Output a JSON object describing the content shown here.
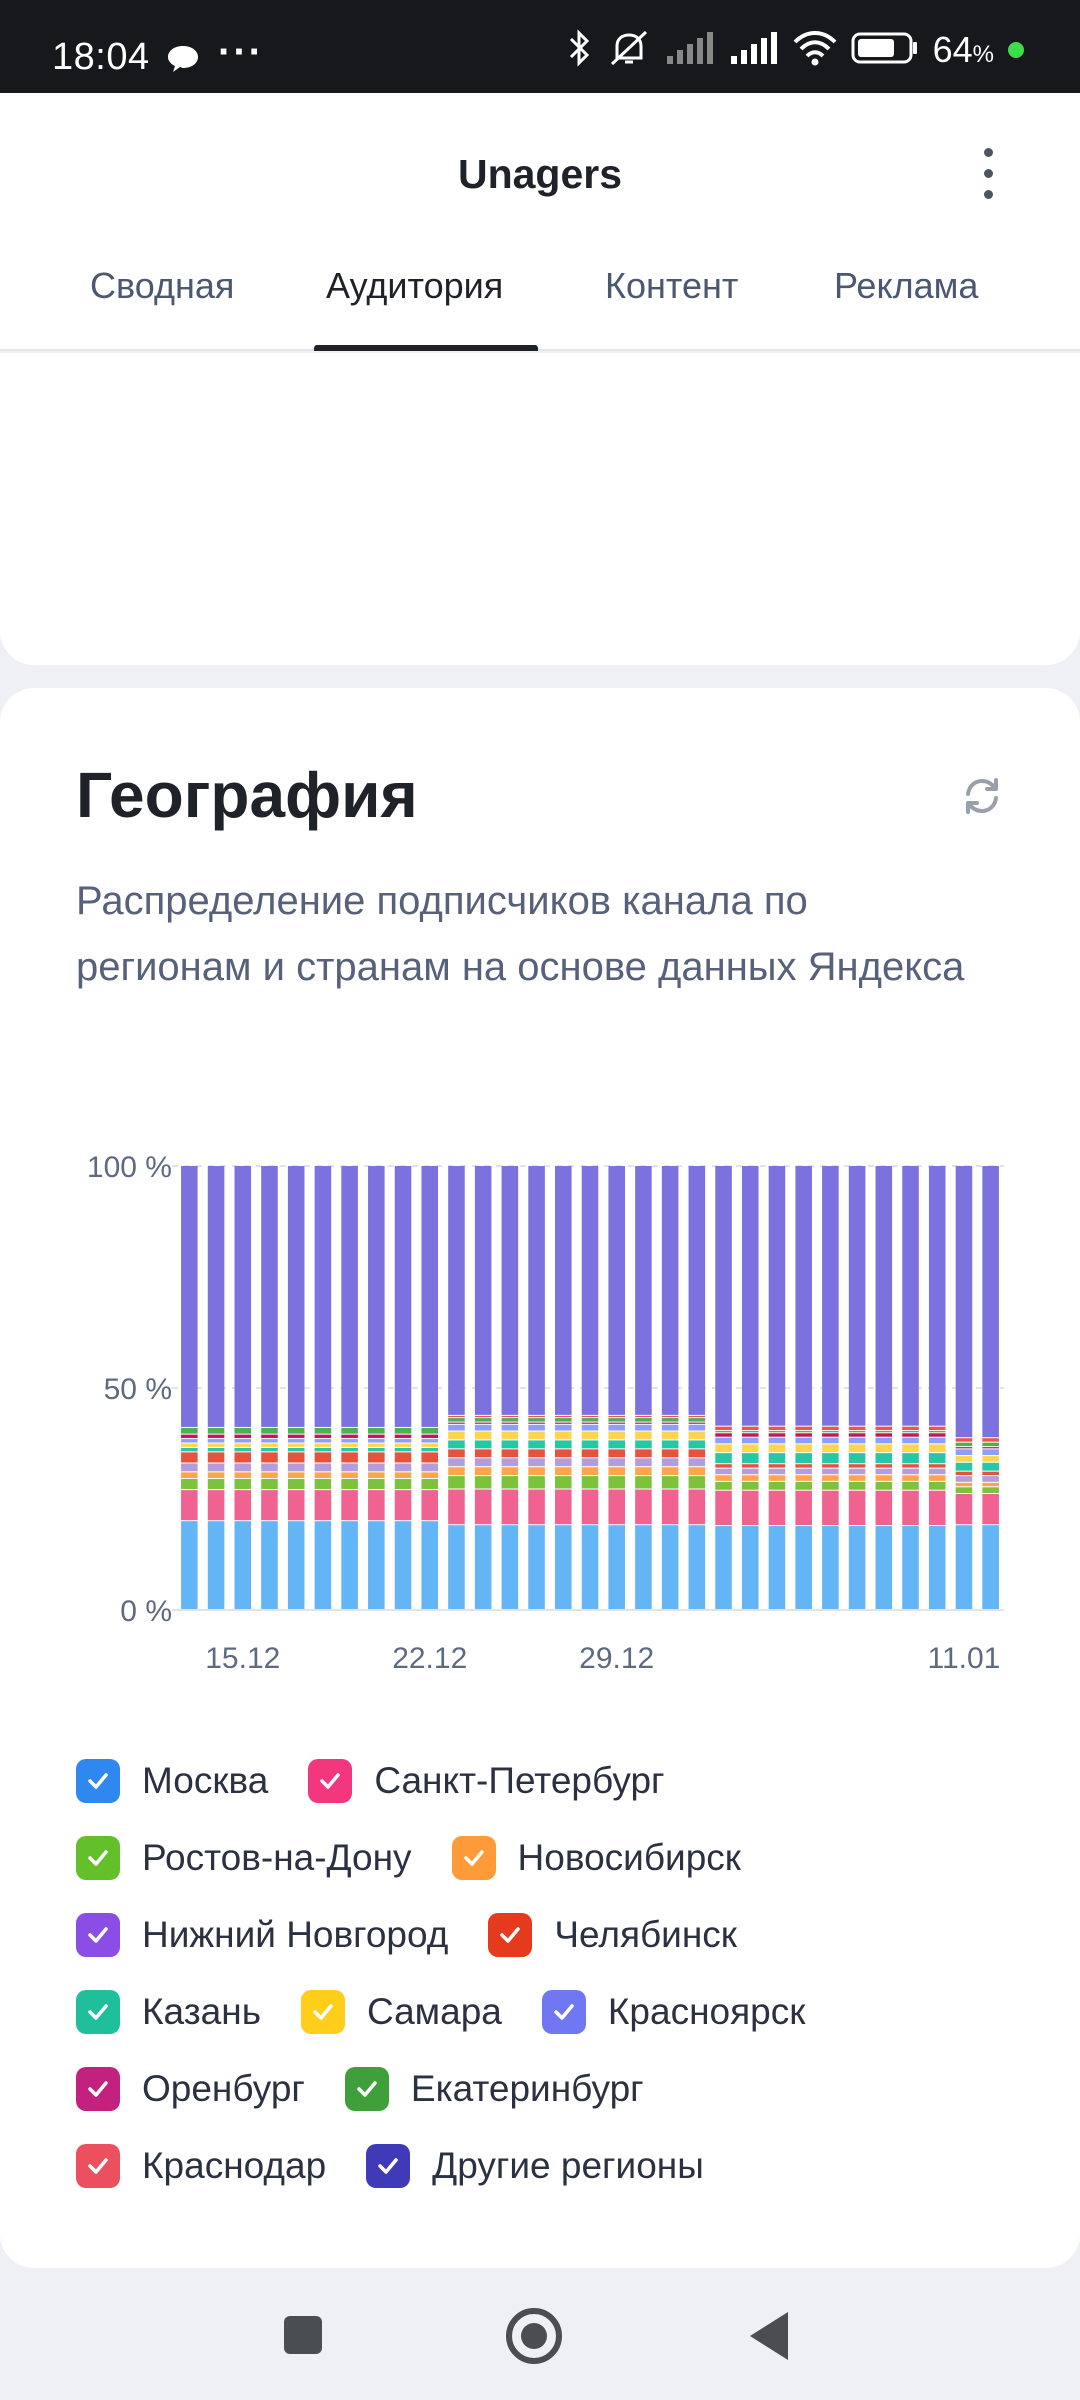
{
  "status_bar": {
    "time": "18:04",
    "dots": "···",
    "battery_pct": "64",
    "battery_unit": "%",
    "icons": [
      "message-icon",
      "bluetooth-icon",
      "silent-icon",
      "signal-icon",
      "signal-icon",
      "wifi-icon",
      "battery-icon"
    ]
  },
  "header": {
    "title": "Unagers",
    "tabs": [
      {
        "label": "Сводная"
      },
      {
        "label": "Аудитория"
      },
      {
        "label": "Контент"
      },
      {
        "label": "Реклама"
      }
    ],
    "active_tab": "Аудитория"
  },
  "geo": {
    "title": "География",
    "description": "Распределение подписчиков канала по регионам и странам на основе данных Яндекса"
  },
  "chart_data": {
    "type": "bar",
    "stacked": true,
    "normalized": true,
    "y_ticks": [
      "100 %",
      "50 %",
      "0 %"
    ],
    "x_ticks": [
      {
        "label": "15.12",
        "index": 2
      },
      {
        "label": "22.12",
        "index": 9
      },
      {
        "label": "29.12",
        "index": 16
      },
      {
        "label": "11.01",
        "index": 29
      }
    ],
    "bar_count": 31,
    "grid": true,
    "series": [
      {
        "name": "Москва",
        "color": "#64b5f6",
        "values": [
          20,
          20,
          20,
          20,
          20,
          20,
          20,
          20,
          20,
          20,
          19,
          19,
          19,
          19,
          19,
          19,
          19,
          19,
          19,
          19,
          19,
          19,
          19,
          19,
          19,
          19,
          19,
          19,
          19,
          19,
          19
        ]
      },
      {
        "name": "Санкт-Петербург",
        "color": "#f06292",
        "values": [
          7,
          7,
          7,
          7,
          7,
          7,
          7,
          7,
          7,
          7,
          8,
          8,
          8,
          8,
          8,
          8,
          8,
          8,
          8,
          8,
          8,
          8,
          8,
          8,
          8,
          8,
          8,
          8,
          8,
          7,
          7
        ]
      },
      {
        "name": "Ростов-на-Дону",
        "color": "#7cc23a",
        "values": [
          2.5,
          2.5,
          2.5,
          2.5,
          2.5,
          2.5,
          2.5,
          2.5,
          2.5,
          2.5,
          3,
          3,
          3,
          3,
          3,
          3,
          3,
          3,
          3,
          3,
          2,
          2,
          2,
          2,
          2,
          2,
          2,
          2,
          2,
          1.5,
          1.5
        ]
      },
      {
        "name": "Новосибирск",
        "color": "#ffa64d",
        "values": [
          1.5,
          1.5,
          1.5,
          1.5,
          1.5,
          1.5,
          1.5,
          1.5,
          1.5,
          1.5,
          2,
          2,
          2,
          2,
          2,
          2,
          2,
          2,
          2,
          2,
          1.5,
          1.5,
          1.5,
          1.5,
          1.5,
          1.5,
          1.5,
          1.5,
          1.5,
          1,
          1
        ]
      },
      {
        "name": "Нижний Новгород",
        "color": "#b39ddb",
        "values": [
          2,
          2,
          2,
          2,
          2,
          2,
          2,
          2,
          2,
          2,
          2,
          2,
          2,
          2,
          2,
          2,
          2,
          2,
          2,
          2,
          1.5,
          1.5,
          1.5,
          1.5,
          1.5,
          1.5,
          1.5,
          1.5,
          1.5,
          1.5,
          1.5
        ]
      },
      {
        "name": "Челябинск",
        "color": "#e5533d",
        "values": [
          2.5,
          2.5,
          2.5,
          2.5,
          2.5,
          2.5,
          2.5,
          2.5,
          2.5,
          2.5,
          2,
          2,
          2,
          2,
          2,
          2,
          2,
          2,
          2,
          2,
          1,
          1,
          1,
          1,
          1,
          1,
          1,
          1,
          1,
          1,
          1
        ]
      },
      {
        "name": "Казань",
        "color": "#26c6a6",
        "values": [
          1,
          1,
          1,
          1,
          1,
          1,
          1,
          1,
          1,
          1,
          2,
          2,
          2,
          2,
          2,
          2,
          2,
          2,
          2,
          2,
          2.5,
          2.5,
          2.5,
          2.5,
          2.5,
          2.5,
          2.5,
          2.5,
          2.5,
          2,
          2
        ]
      },
      {
        "name": "Самара",
        "color": "#ffd54f",
        "values": [
          1,
          1,
          1,
          1,
          1,
          1,
          1,
          1,
          1,
          1,
          2,
          2,
          2,
          2,
          2,
          2,
          2,
          2,
          2,
          2,
          2,
          2,
          2,
          2,
          2,
          2,
          2,
          2,
          2,
          1.5,
          1.5
        ]
      },
      {
        "name": "Красноярск",
        "color": "#8c9eff",
        "values": [
          1,
          1,
          1,
          1,
          1,
          1,
          1,
          1,
          1,
          1,
          1.5,
          1.5,
          1.5,
          1.5,
          1.5,
          1.5,
          1.5,
          1.5,
          1.5,
          1.5,
          1.5,
          1.5,
          1.5,
          1.5,
          1.5,
          1.5,
          1.5,
          1.5,
          1.5,
          1.5,
          1.5
        ]
      },
      {
        "name": "Оренбург",
        "color": "#c2185b",
        "values": [
          1,
          1,
          1,
          1,
          1,
          1,
          1,
          1,
          1,
          1,
          0.5,
          0.5,
          0.5,
          0.5,
          0.5,
          0.5,
          0.5,
          0.5,
          0.5,
          0.5,
          1,
          1,
          1,
          1,
          1,
          1,
          1,
          1,
          1,
          0.5,
          0.5
        ]
      },
      {
        "name": "Екатеринбург",
        "color": "#4caf50",
        "values": [
          1.5,
          1.5,
          1.5,
          1.5,
          1.5,
          1.5,
          1.5,
          1.5,
          1.5,
          1.5,
          1,
          1,
          1,
          1,
          1,
          1,
          1,
          1,
          1,
          1,
          0.5,
          0.5,
          0.5,
          0.5,
          0.5,
          0.5,
          0.5,
          0.5,
          0.5,
          1,
          1
        ]
      },
      {
        "name": "Краснодар",
        "color": "#ef5350",
        "values": [
          0,
          0,
          0,
          0,
          0,
          0,
          0,
          0,
          0,
          0,
          0.5,
          0.5,
          0.5,
          0.5,
          0.5,
          0.5,
          0.5,
          0.5,
          0.5,
          0.5,
          1,
          1,
          1,
          1,
          1,
          1,
          1,
          1,
          1,
          1,
          1
        ]
      },
      {
        "name": "Другие регионы",
        "color": "#7b72e0",
        "values": [
          59,
          59,
          59,
          59,
          59,
          59,
          59,
          59,
          59,
          59,
          56,
          56,
          56,
          56,
          56,
          56,
          56,
          56,
          56,
          56,
          59,
          59,
          59,
          59,
          59,
          59,
          59,
          59,
          59,
          61,
          61
        ]
      }
    ]
  },
  "legend": {
    "rows": [
      [
        {
          "label": "Москва",
          "color": "#2f88f0"
        },
        {
          "label": "Санкт-Петербург",
          "color": "#f2377f"
        }
      ],
      [
        {
          "label": "Ростов-на-Дону",
          "color": "#64c02a"
        },
        {
          "label": "Новосибирск",
          "color": "#ff9a38"
        }
      ],
      [
        {
          "label": "Нижний Новгород",
          "color": "#8a4ee6"
        },
        {
          "label": "Челябинск",
          "color": "#e63a1e"
        }
      ],
      [
        {
          "label": "Казань",
          "color": "#1fbf9c"
        },
        {
          "label": "Самара",
          "color": "#ffce1a"
        },
        {
          "label": "Красноярск",
          "color": "#6f78f2"
        }
      ],
      [
        {
          "label": "Оренбург",
          "color": "#c2217f"
        },
        {
          "label": "Екатеринбург",
          "color": "#3f9f3a"
        }
      ],
      [
        {
          "label": "Краснодар",
          "color": "#ec4f5e"
        },
        {
          "label": "Другие регионы",
          "color": "#3e3ab8"
        }
      ]
    ]
  },
  "nav": {
    "icons": [
      "recents-icon",
      "home-icon",
      "back-icon"
    ]
  }
}
